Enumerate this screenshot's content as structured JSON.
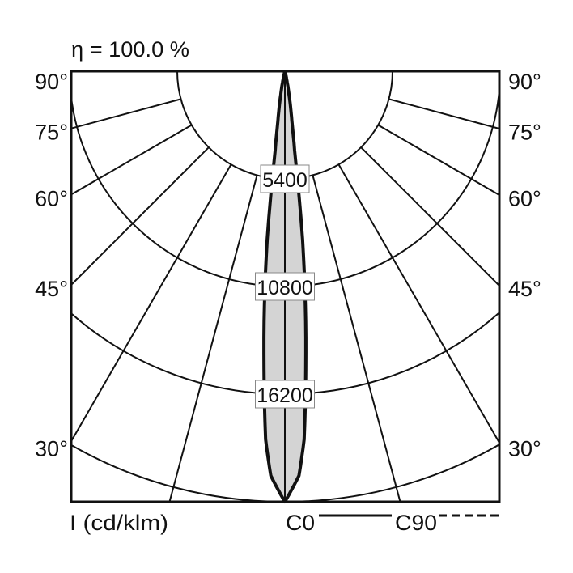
{
  "chart_data": {
    "type": "polar-line",
    "title": "η = 100.0 %",
    "radial_unit_label": "I (cd/klm)",
    "radial_ticks": [
      5400,
      10800,
      16200
    ],
    "radial_tick_labels": [
      "5400",
      "10800",
      "16200"
    ],
    "radial_max": 21600,
    "angle_ticks": [
      90,
      75,
      60,
      45,
      30
    ],
    "angle_tick_labels": [
      "90°",
      "75°",
      "60°",
      "45°",
      "30°"
    ],
    "angle_gridlines": [
      15,
      30,
      45,
      60,
      75
    ],
    "legend": [
      {
        "name": "C0",
        "style": "solid"
      },
      {
        "name": "C90",
        "style": "dashed"
      }
    ],
    "legend_placement": "bottom-right",
    "fill_color": "#d4d4d4",
    "series": [
      {
        "name": "C0",
        "angles_deg": [
          0,
          2,
          3,
          4,
          5,
          6,
          7,
          8,
          10,
          12,
          15,
          20
        ],
        "intensity": [
          21600,
          20300,
          18500,
          15000,
          11800,
          8500,
          4000,
          2500,
          1200,
          500,
          100,
          0
        ]
      }
    ]
  }
}
